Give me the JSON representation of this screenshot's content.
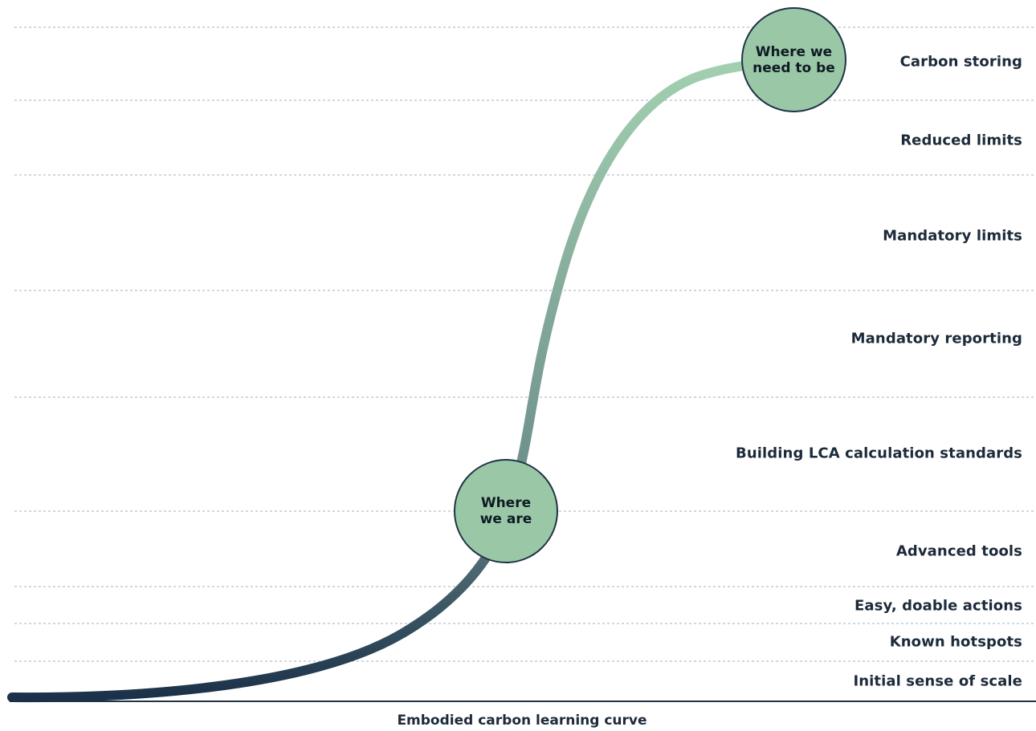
{
  "diagram": {
    "caption": "Embodied carbon learning curve",
    "stages": [
      "Carbon storing",
      "Reduced limits",
      "Mandatory limits",
      "Mandatory reporting",
      "Building LCA calculation standards",
      "Advanced tools",
      "Easy, doable actions",
      "Known hotspots",
      "Initial sense of scale"
    ],
    "markers": {
      "current": "Where\nwe are",
      "target": "Where we\nneed to be"
    },
    "colors": {
      "curve_start": "#1b3149",
      "curve_end": "#a3d0b0",
      "bubble_fill": "#9ac8a6",
      "outline": "#1f3447",
      "gridline": "#a9b8c6"
    }
  }
}
